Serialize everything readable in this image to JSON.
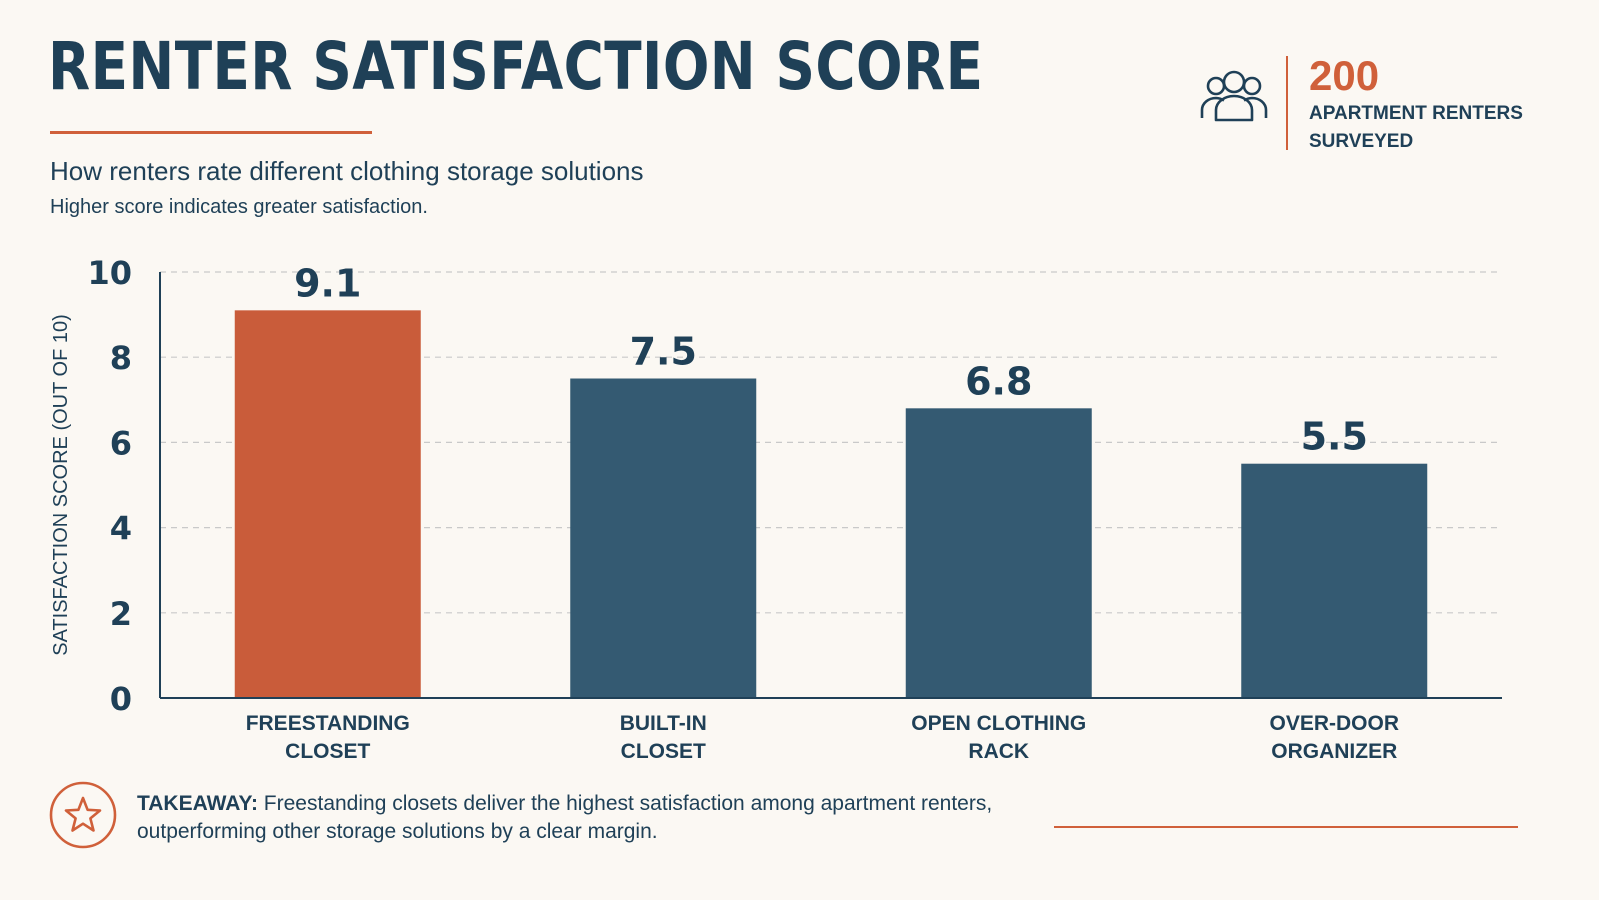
{
  "header": {
    "title": "RENTER SATISFACTION SCORE",
    "subtitle": "How renters rate different clothing storage solutions",
    "note": "Higher score indicates greater satisfaction."
  },
  "survey": {
    "count": "200",
    "label": "APARTMENT RENTERS SURVEYED",
    "icon": "people-group-icon"
  },
  "takeaway": {
    "label": "TAKEAWAY:",
    "text": " Freestanding closets deliver the highest satisfaction among apartment renters, outperforming other storage solutions by a clear margin.",
    "icon": "star-icon"
  },
  "colors": {
    "accent": "#d0603a",
    "navy": "#1f4057",
    "bar_highlight": "#c95c3a",
    "bar_default": "#345a72",
    "background": "#fbf8f3"
  },
  "chart_data": {
    "type": "bar",
    "categories": [
      [
        "FREESTANDING",
        "CLOSET"
      ],
      [
        "BUILT-IN",
        "CLOSET"
      ],
      [
        "OPEN CLOTHING",
        "RACK"
      ],
      [
        "OVER-DOOR",
        "ORGANIZER"
      ]
    ],
    "values": [
      9.1,
      7.5,
      6.8,
      5.5
    ],
    "value_labels": [
      "9.1",
      "7.5",
      "6.8",
      "5.5"
    ],
    "highlight_index": 0,
    "ylabel": "SATISFACTION SCORE (OUT OF 10)",
    "ylim": [
      0,
      10
    ],
    "yticks": [
      0,
      2,
      4,
      6,
      8,
      10
    ],
    "grid": true
  }
}
